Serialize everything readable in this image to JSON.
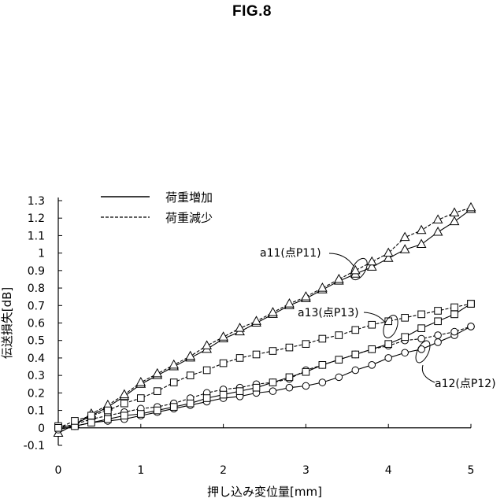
{
  "figure": {
    "title": "FIG.8"
  },
  "chart_data": {
    "type": "line",
    "title": "",
    "xlabel": "押し込み変位量[mm]",
    "ylabel": "伝送損失[dB]",
    "xlim": [
      0,
      5
    ],
    "ylim": [
      -0.1,
      1.3
    ],
    "xticks": [
      0,
      1,
      2,
      3,
      4,
      5
    ],
    "yticks": [
      -0.1,
      0,
      0.1,
      0.2,
      0.3,
      0.4,
      0.5,
      0.6,
      0.7,
      0.8,
      0.9,
      1,
      1.1,
      1.2,
      1.3
    ],
    "grid": false,
    "legend": {
      "position": "top-left",
      "entries": [
        {
          "label": "荷重増加",
          "linestyle": "solid"
        },
        {
          "label": "荷重減少",
          "linestyle": "dashed"
        }
      ]
    },
    "x": [
      0,
      0.2,
      0.4,
      0.6,
      0.8,
      1.0,
      1.2,
      1.4,
      1.6,
      1.8,
      2.0,
      2.2,
      2.4,
      2.6,
      2.8,
      3.0,
      3.2,
      3.4,
      3.6,
      3.8,
      4.0,
      4.2,
      4.4,
      4.6,
      4.8,
      5.0
    ],
    "series": [
      {
        "group": "a11",
        "marker": "triangle",
        "linestyle": "solid",
        "values": [
          -0.03,
          0.02,
          0.07,
          0.12,
          0.18,
          0.25,
          0.3,
          0.35,
          0.4,
          0.45,
          0.51,
          0.55,
          0.6,
          0.65,
          0.7,
          0.74,
          0.79,
          0.84,
          0.88,
          0.92,
          0.97,
          1.02,
          1.05,
          1.12,
          1.18,
          1.25
        ]
      },
      {
        "group": "a11",
        "marker": "triangle",
        "linestyle": "dashed",
        "values": [
          -0.03,
          0.02,
          0.08,
          0.13,
          0.19,
          0.26,
          0.31,
          0.36,
          0.41,
          0.47,
          0.52,
          0.57,
          0.61,
          0.66,
          0.71,
          0.75,
          0.8,
          0.85,
          0.9,
          0.95,
          1.0,
          1.09,
          1.13,
          1.19,
          1.23,
          1.26
        ]
      },
      {
        "group": "a12",
        "marker": "circle",
        "linestyle": "solid",
        "values": [
          -0.01,
          0.01,
          0.03,
          0.04,
          0.05,
          0.07,
          0.09,
          0.11,
          0.13,
          0.15,
          0.17,
          0.18,
          0.2,
          0.21,
          0.23,
          0.24,
          0.26,
          0.29,
          0.33,
          0.36,
          0.4,
          0.43,
          0.45,
          0.49,
          0.53,
          0.58
        ]
      },
      {
        "group": "a12",
        "marker": "circle",
        "linestyle": "dashed",
        "values": [
          0.0,
          0.02,
          0.05,
          0.07,
          0.09,
          0.11,
          0.12,
          0.14,
          0.17,
          0.2,
          0.22,
          0.23,
          0.25,
          0.26,
          0.28,
          0.33,
          0.36,
          0.39,
          0.42,
          0.45,
          0.47,
          0.5,
          0.51,
          0.53,
          0.55,
          0.58
        ]
      },
      {
        "group": "a13",
        "marker": "square",
        "linestyle": "solid",
        "values": [
          0.01,
          0.01,
          0.03,
          0.05,
          0.07,
          0.08,
          0.1,
          0.12,
          0.14,
          0.17,
          0.19,
          0.21,
          0.23,
          0.26,
          0.29,
          0.32,
          0.36,
          0.39,
          0.42,
          0.45,
          0.48,
          0.52,
          0.57,
          0.61,
          0.65,
          0.71
        ]
      },
      {
        "group": "a13",
        "marker": "square",
        "linestyle": "dashed",
        "values": [
          0.0,
          0.04,
          0.07,
          0.1,
          0.14,
          0.17,
          0.21,
          0.26,
          0.3,
          0.33,
          0.37,
          0.4,
          0.42,
          0.44,
          0.46,
          0.48,
          0.51,
          0.53,
          0.56,
          0.59,
          0.61,
          0.63,
          0.65,
          0.67,
          0.69,
          0.71
        ]
      }
    ],
    "annotations": [
      {
        "text": "a11(点P11)",
        "target_x": 3.6,
        "target_y": 0.9
      },
      {
        "text": "a13(点P13)",
        "target_x": 4.0,
        "target_y": 0.58
      },
      {
        "text": "a12(点P12)",
        "target_x": 4.4,
        "target_y": 0.47
      }
    ]
  }
}
